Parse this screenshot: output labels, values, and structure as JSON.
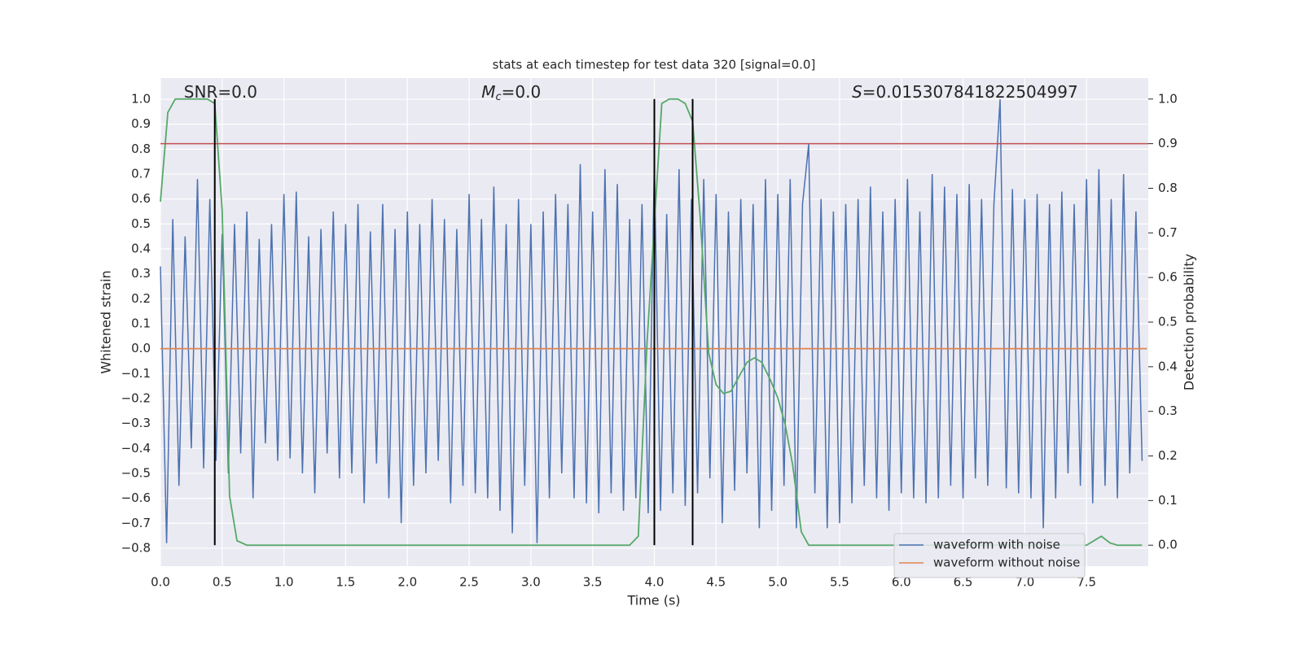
{
  "chart_data": {
    "type": "line",
    "title": "stats at each timestep for test data 320 [signal=0.0]",
    "xlabel": "Time (s)",
    "ylabel": "Whitened strain",
    "y2label": "Detection probability",
    "annotations": [
      {
        "text": "SNR=0.0",
        "x": 0.19
      },
      {
        "symbol": "M",
        "subscript": "c",
        "text": "=0.0",
        "x": 2.6
      },
      {
        "symbol": "S",
        "text": "=0.015307841822504997",
        "x": 5.6
      }
    ],
    "xlim": [
      0,
      8
    ],
    "ylim": [
      -0.872,
      1.085
    ],
    "y2lim": [
      -0.047,
      1.047
    ],
    "grid": true,
    "legend": "lower right",
    "xticks": [
      {
        "value": 0,
        "label": "0.0"
      },
      {
        "value": 0.5,
        "label": "0.5"
      },
      {
        "value": 1,
        "label": "1.0"
      },
      {
        "value": 1.5,
        "label": "1.5"
      },
      {
        "value": 2,
        "label": "2.0"
      },
      {
        "value": 2.5,
        "label": "2.5"
      },
      {
        "value": 3,
        "label": "3.0"
      },
      {
        "value": 3.5,
        "label": "3.5"
      },
      {
        "value": 4,
        "label": "4.0"
      },
      {
        "value": 4.5,
        "label": "4.5"
      },
      {
        "value": 5,
        "label": "5.0"
      },
      {
        "value": 5.5,
        "label": "5.5"
      },
      {
        "value": 6,
        "label": "6.0"
      },
      {
        "value": 6.5,
        "label": "6.5"
      },
      {
        "value": 7,
        "label": "7.0"
      },
      {
        "value": 7.5,
        "label": "7.5"
      }
    ],
    "yticks": [
      {
        "value": -0.8,
        "label": "−0.8"
      },
      {
        "value": -0.7,
        "label": "−0.7"
      },
      {
        "value": -0.6,
        "label": "−0.6"
      },
      {
        "value": -0.5,
        "label": "−0.5"
      },
      {
        "value": -0.4,
        "label": "−0.4"
      },
      {
        "value": -0.3,
        "label": "−0.3"
      },
      {
        "value": -0.2,
        "label": "−0.2"
      },
      {
        "value": -0.1,
        "label": "−0.1"
      },
      {
        "value": 0,
        "label": "0.0"
      },
      {
        "value": 0.1,
        "label": "0.1"
      },
      {
        "value": 0.2,
        "label": "0.2"
      },
      {
        "value": 0.3,
        "label": "0.3"
      },
      {
        "value": 0.4,
        "label": "0.4"
      },
      {
        "value": 0.5,
        "label": "0.5"
      },
      {
        "value": 0.6,
        "label": "0.6"
      },
      {
        "value": 0.7,
        "label": "0.7"
      },
      {
        "value": 0.8,
        "label": "0.8"
      },
      {
        "value": 0.9,
        "label": "0.9"
      },
      {
        "value": 1,
        "label": "1.0"
      }
    ],
    "y2ticks": [
      {
        "value": 0,
        "label": "0.0"
      },
      {
        "value": 0.1,
        "label": "0.1"
      },
      {
        "value": 0.2,
        "label": "0.2"
      },
      {
        "value": 0.3,
        "label": "0.3"
      },
      {
        "value": 0.4,
        "label": "0.4"
      },
      {
        "value": 0.5,
        "label": "0.5"
      },
      {
        "value": 0.6,
        "label": "0.6"
      },
      {
        "value": 0.7,
        "label": "0.7"
      },
      {
        "value": 0.8,
        "label": "0.8"
      },
      {
        "value": 0.9,
        "label": "0.9"
      },
      {
        "value": 1,
        "label": "1.0"
      }
    ],
    "hlines": {
      "y": [
        0.9
      ],
      "axis": "y2",
      "color": "#c44e52"
    },
    "vlines": {
      "x": [
        0.44,
        4.0,
        4.31
      ],
      "ymin": 0,
      "ymax": 1,
      "axis": "y2",
      "color": "#000000"
    },
    "series": [
      {
        "name": "waveform with noise",
        "color": "#4c72b0",
        "x": [
          0,
          0.05,
          0.1,
          0.15,
          0.2,
          0.25,
          0.3,
          0.35,
          0.4,
          0.45,
          0.5,
          0.55,
          0.6,
          0.65,
          0.7,
          0.75,
          0.8,
          0.85,
          0.9,
          0.95,
          1,
          1.05,
          1.1,
          1.15,
          1.2,
          1.25,
          1.3,
          1.35,
          1.4,
          1.45,
          1.5,
          1.55,
          1.6,
          1.65,
          1.7,
          1.75,
          1.8,
          1.85,
          1.9,
          1.95,
          2,
          2.05,
          2.1,
          2.15,
          2.2,
          2.25,
          2.3,
          2.35,
          2.4,
          2.45,
          2.5,
          2.55,
          2.6,
          2.65,
          2.7,
          2.75,
          2.8,
          2.85,
          2.9,
          2.95,
          3,
          3.05,
          3.1,
          3.15,
          3.2,
          3.25,
          3.3,
          3.35,
          3.4,
          3.45,
          3.5,
          3.55,
          3.6,
          3.65,
          3.7,
          3.75,
          3.8,
          3.85,
          3.9,
          3.95,
          4,
          4.05,
          4.1,
          4.15,
          4.2,
          4.25,
          4.3,
          4.35,
          4.4,
          4.45,
          4.5,
          4.55,
          4.6,
          4.65,
          4.7,
          4.75,
          4.8,
          4.85,
          4.9,
          4.95,
          5,
          5.05,
          5.1,
          5.15,
          5.2,
          5.25,
          5.3,
          5.35,
          5.4,
          5.45,
          5.5,
          5.55,
          5.6,
          5.65,
          5.7,
          5.75,
          5.8,
          5.85,
          5.9,
          5.95,
          6,
          6.05,
          6.1,
          6.15,
          6.2,
          6.25,
          6.3,
          6.35,
          6.4,
          6.45,
          6.5,
          6.55,
          6.6,
          6.65,
          6.7,
          6.75,
          6.8,
          6.85,
          6.9,
          6.95,
          7,
          7.05,
          7.1,
          7.15,
          7.2,
          7.25,
          7.3,
          7.35,
          7.4,
          7.45,
          7.5,
          7.55,
          7.6,
          7.65,
          7.7,
          7.75,
          7.8,
          7.85,
          7.9,
          7.95
        ],
        "values": [
          0.33,
          -0.78,
          0.52,
          -0.55,
          0.45,
          -0.4,
          0.68,
          -0.48,
          0.6,
          -0.45,
          0.46,
          -0.5,
          0.5,
          -0.42,
          0.55,
          -0.6,
          0.44,
          -0.38,
          0.5,
          -0.45,
          0.62,
          -0.44,
          0.63,
          -0.5,
          0.45,
          -0.58,
          0.48,
          -0.42,
          0.55,
          -0.52,
          0.5,
          -0.5,
          0.58,
          -0.62,
          0.47,
          -0.46,
          0.58,
          -0.6,
          0.48,
          -0.7,
          0.55,
          -0.55,
          0.5,
          -0.5,
          0.6,
          -0.45,
          0.52,
          -0.62,
          0.48,
          -0.55,
          0.62,
          -0.58,
          0.52,
          -0.6,
          0.65,
          -0.65,
          0.5,
          -0.74,
          0.6,
          -0.55,
          0.5,
          -0.78,
          0.55,
          -0.6,
          0.62,
          -0.5,
          0.58,
          -0.6,
          0.74,
          -0.62,
          0.55,
          -0.66,
          0.72,
          -0.58,
          0.66,
          -0.65,
          0.52,
          -0.6,
          0.58,
          -0.66,
          0.74,
          -0.65,
          0.54,
          -0.58,
          0.72,
          -0.63,
          0.6,
          -0.58,
          0.68,
          -0.52,
          0.62,
          -0.7,
          0.55,
          -0.57,
          0.6,
          -0.5,
          0.58,
          -0.72,
          0.68,
          -0.65,
          0.62,
          -0.55,
          0.68,
          -0.72,
          0.58,
          0.82,
          -0.58,
          0.6,
          -0.72,
          0.55,
          -0.7,
          0.58,
          -0.62,
          0.6,
          -0.55,
          0.65,
          -0.6,
          0.55,
          -0.65,
          0.6,
          -0.58,
          0.68,
          -0.6,
          0.55,
          -0.62,
          0.7,
          -0.6,
          0.65,
          -0.55,
          0.62,
          -0.6,
          0.66,
          -0.52,
          0.6,
          -0.55,
          0.58,
          1.0,
          -0.56,
          0.64,
          -0.58,
          0.6,
          -0.6,
          0.62,
          -0.72,
          0.58,
          -0.6,
          0.63,
          -0.5,
          0.58,
          -0.55,
          0.68,
          -0.62,
          0.72,
          -0.55,
          0.6,
          -0.6,
          0.7,
          -0.5,
          0.55,
          -0.45
        ]
      },
      {
        "name": "waveform without noise",
        "color": "#dd8452",
        "x": [
          0,
          7.99
        ],
        "values": [
          0,
          0
        ]
      },
      {
        "color": "#55a868",
        "axis": "y2",
        "x": [
          0,
          0.06,
          0.12,
          0.2,
          0.3,
          0.38,
          0.44,
          0.5,
          0.56,
          0.62,
          0.7,
          1.5,
          2.5,
          3.5,
          3.8,
          3.87,
          3.94,
          4.06,
          4.12,
          4.19,
          4.25,
          4.31,
          4.37,
          4.44,
          4.5,
          4.56,
          4.62,
          4.69,
          4.75,
          4.81,
          4.87,
          4.94,
          5.0,
          5.06,
          5.12,
          5.19,
          5.25,
          6.0,
          7.0,
          7.5,
          7.56,
          7.62,
          7.69,
          7.75,
          7.95
        ],
        "values": [
          0.77,
          0.97,
          1.0,
          1.0,
          1.0,
          1.0,
          0.99,
          0.75,
          0.11,
          0.01,
          0.0,
          0.0,
          0.0,
          0.0,
          0.0,
          0.02,
          0.45,
          0.99,
          1.0,
          1.0,
          0.99,
          0.95,
          0.74,
          0.43,
          0.36,
          0.34,
          0.345,
          0.38,
          0.41,
          0.42,
          0.41,
          0.37,
          0.33,
          0.27,
          0.18,
          0.03,
          0.0,
          0.0,
          0.0,
          0.0,
          0.01,
          0.02,
          0.005,
          0.0,
          0.0
        ]
      }
    ]
  }
}
